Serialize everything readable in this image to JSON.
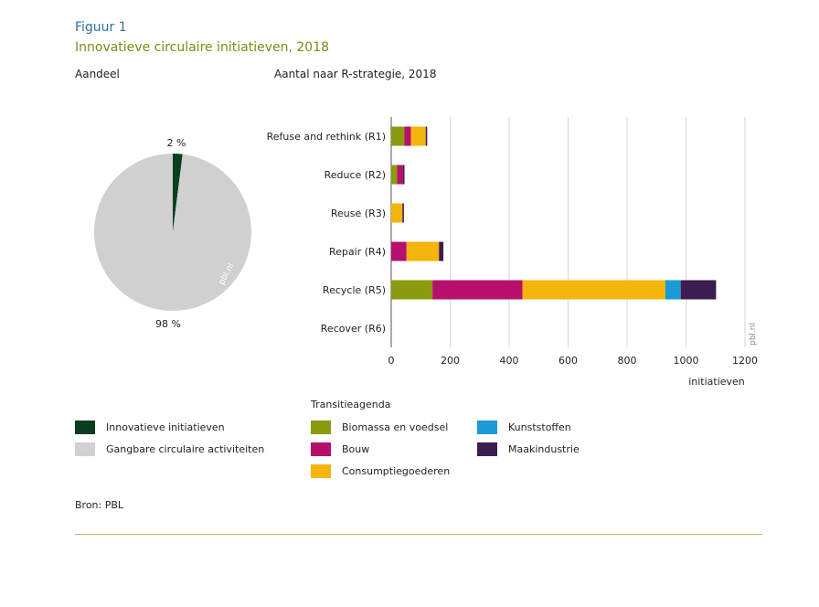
{
  "header": {
    "figure_label": "Figuur 1",
    "title": "Innovatieve circulaire initiatieven, 2018"
  },
  "pie": {
    "heading": "Aandeel",
    "watermark": "pbl.nl",
    "labels": {
      "innovative": "2 %",
      "common": "98 %"
    },
    "legend": [
      {
        "label": "Innovatieve initiatieven",
        "color": "#0b3d20"
      },
      {
        "label": "Gangbare circulaire activiteiten",
        "color": "#d0d0d0"
      }
    ]
  },
  "bars": {
    "heading": "Aantal naar R-strategie, 2018",
    "watermark": "pbl.nl",
    "legend_title": "Transitieagenda"
  },
  "chart_data": [
    {
      "type": "pie",
      "title": "Aandeel",
      "slices": [
        {
          "name": "Innovatieve initiatieven",
          "value": 2,
          "color": "#0b3d20"
        },
        {
          "name": "Gangbare circulaire activiteiten",
          "value": 98,
          "color": "#d0d0d0"
        }
      ]
    },
    {
      "type": "bar",
      "orientation": "horizontal",
      "stacked": true,
      "title": "Aantal naar R-strategie, 2018",
      "xlabel": "initiatieven",
      "ylabel": "",
      "xlim": [
        0,
        1200
      ],
      "xticks": [
        0,
        200,
        400,
        600,
        800,
        1000,
        1200
      ],
      "grid": true,
      "categories": [
        "Refuse and rethink (R1)",
        "Reduce (R2)",
        "Reuse (R3)",
        "Repair (R4)",
        "Recycle (R5)",
        "Recover (R6)"
      ],
      "series": [
        {
          "name": "Biomassa en voedsel",
          "color": "#8c9a10",
          "values": [
            45,
            20,
            0,
            0,
            140,
            0
          ]
        },
        {
          "name": "Bouw",
          "color": "#b5106b",
          "values": [
            22,
            20,
            0,
            52,
            305,
            0
          ]
        },
        {
          "name": "Consumptiegoederen",
          "color": "#f5b40a",
          "values": [
            50,
            0,
            38,
            110,
            485,
            0
          ]
        },
        {
          "name": "Kunststoffen",
          "color": "#1a9ad6",
          "values": [
            0,
            0,
            0,
            0,
            52,
            0
          ]
        },
        {
          "name": "Maakindustrie",
          "color": "#3c1d4f",
          "values": [
            5,
            5,
            5,
            15,
            120,
            0
          ]
        }
      ]
    }
  ],
  "footer": {
    "source": "Bron: PBL"
  }
}
